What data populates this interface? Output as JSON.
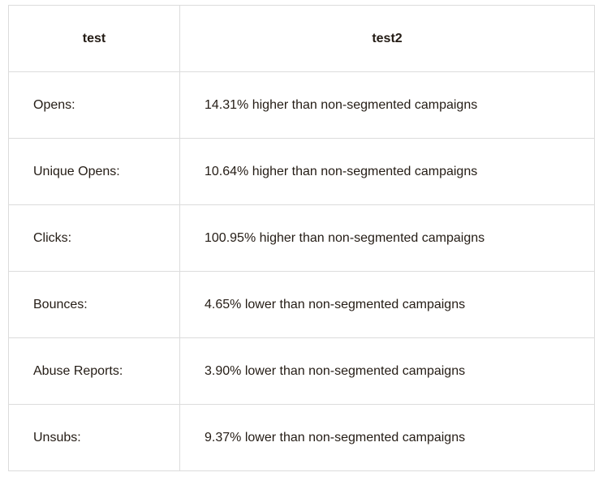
{
  "table": {
    "headers": [
      "test",
      "test2"
    ],
    "rows": [
      {
        "metric": "Opens:",
        "result": "14.31% higher than non-segmented campaigns"
      },
      {
        "metric": "Unique Opens:",
        "result": "10.64% higher than non-segmented campaigns"
      },
      {
        "metric": "Clicks:",
        "result": "100.95% higher than non-segmented campaigns"
      },
      {
        "metric": "Bounces:",
        "result": "4.65% lower than non-segmented campaigns"
      },
      {
        "metric": "Abuse Reports:",
        "result": "3.90% lower than non-segmented campaigns"
      },
      {
        "metric": "Unsubs:",
        "result": "9.37% lower than non-segmented campaigns"
      }
    ]
  }
}
